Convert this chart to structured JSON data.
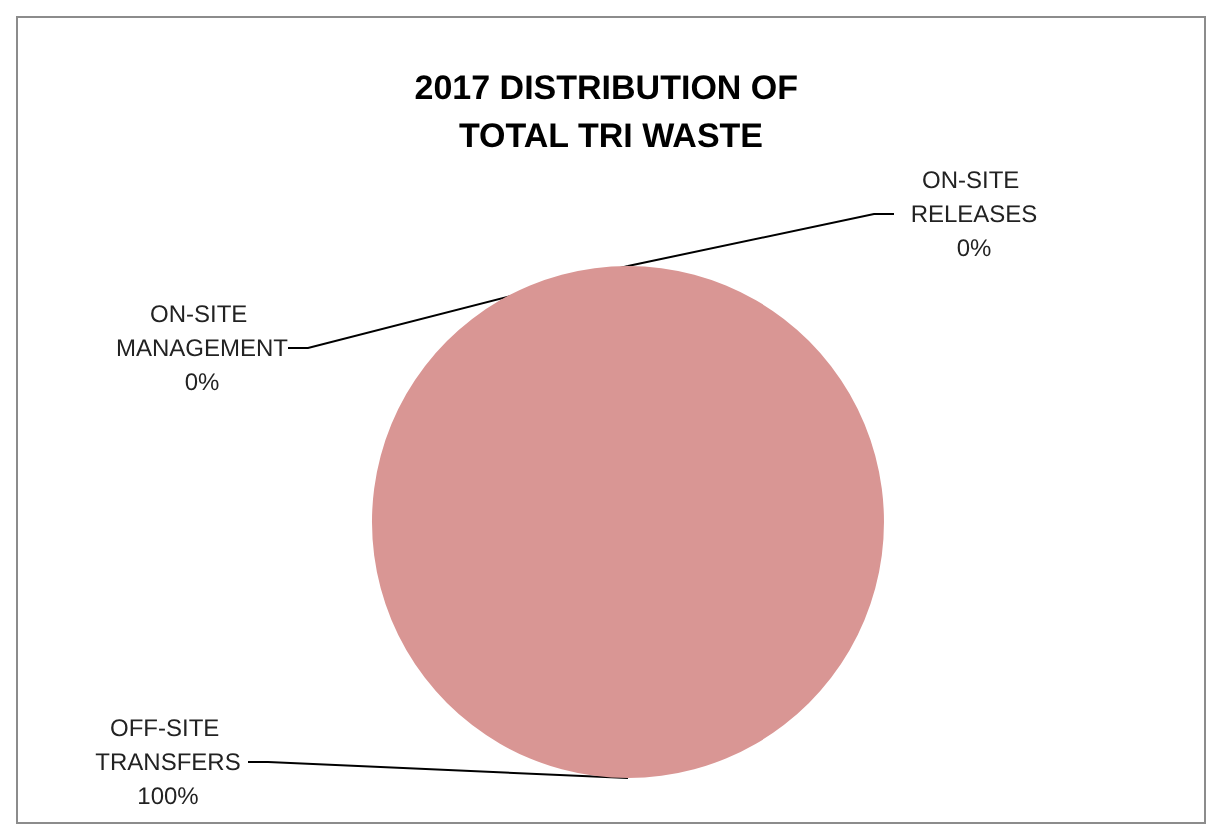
{
  "chart_data": {
    "type": "pie",
    "title": "2017 DISTRIBUTION OF TOTAL TRI WASTE",
    "categories": [
      "ON-SITE RELEASES",
      "ON-SITE MANAGEMENT",
      "OFF-SITE TRANSFERS"
    ],
    "values": [
      0,
      0,
      100
    ],
    "colors": [
      "#d99694",
      "#d99694",
      "#d99694"
    ],
    "value_labels": [
      "0%",
      "0%",
      "100%"
    ],
    "legend": false
  }
}
